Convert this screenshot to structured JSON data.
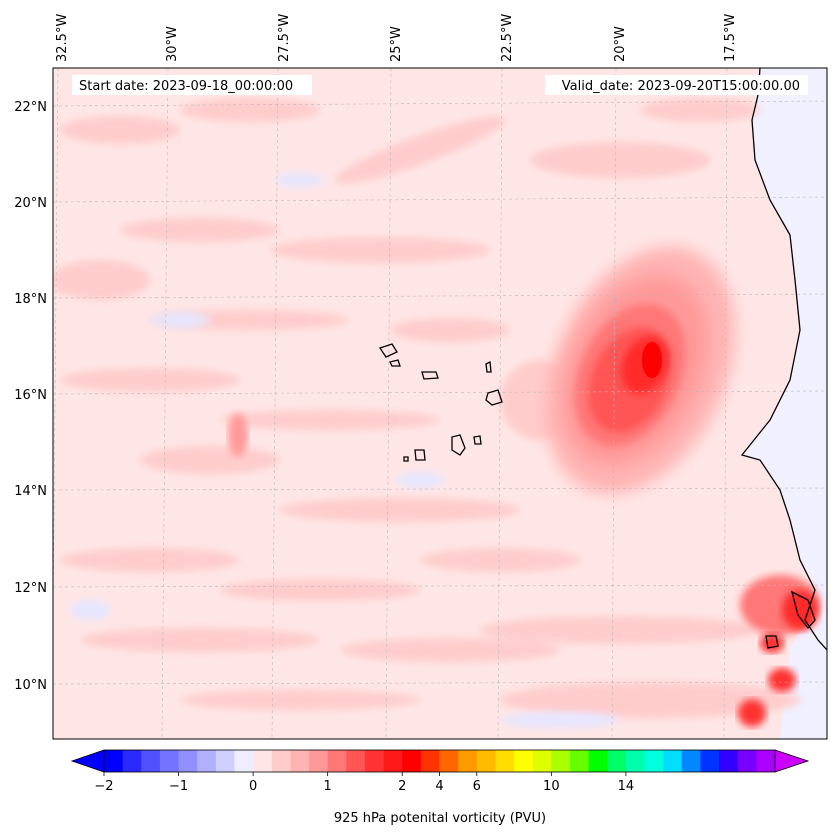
{
  "map": {
    "header": {
      "start": "Start date: 2023-09-18_00:00:00",
      "valid": "Valid_date: 2023-09-20T15:00:00.00"
    },
    "lon_labels": [
      "32.5°W",
      "30°W",
      "27.5°W",
      "25°W",
      "22.5°W",
      "20°W",
      "17.5°W"
    ],
    "lat_labels": [
      "22°N",
      "20°N",
      "18°N",
      "16°N",
      "14°N",
      "12°N",
      "10°N"
    ],
    "background_color": "#ffe6e6",
    "land_color": "#f0f0ff"
  },
  "colorbar": {
    "label": "925 hPa potenital vorticity (PVU)",
    "tick_labels": [
      "−2",
      "−1",
      "0",
      "1",
      "2",
      "4",
      "6",
      "10",
      "14"
    ],
    "colors": [
      "#0000ff",
      "#2a2aff",
      "#5050ff",
      "#7373ff",
      "#9090ff",
      "#b0b0ff",
      "#d0d0ff",
      "#eeeeff",
      "#ffe6e6",
      "#ffcccc",
      "#ffb3b3",
      "#ff9999",
      "#ff7777",
      "#ff5555",
      "#ff3333",
      "#ff1a1a",
      "#ff0000",
      "#ff3300",
      "#ff6600",
      "#ff9900",
      "#ffbb00",
      "#ffdd00",
      "#ffff00",
      "#ddff00",
      "#aaff00",
      "#66ff00",
      "#00ff00",
      "#00ff66",
      "#00ffaa",
      "#00ffdd",
      "#00ddff",
      "#0088ff",
      "#0033ff",
      "#3300ff",
      "#7700ff",
      "#aa00ff"
    ],
    "under_color": "#0000ff",
    "over_color": "#cc00ff"
  }
}
